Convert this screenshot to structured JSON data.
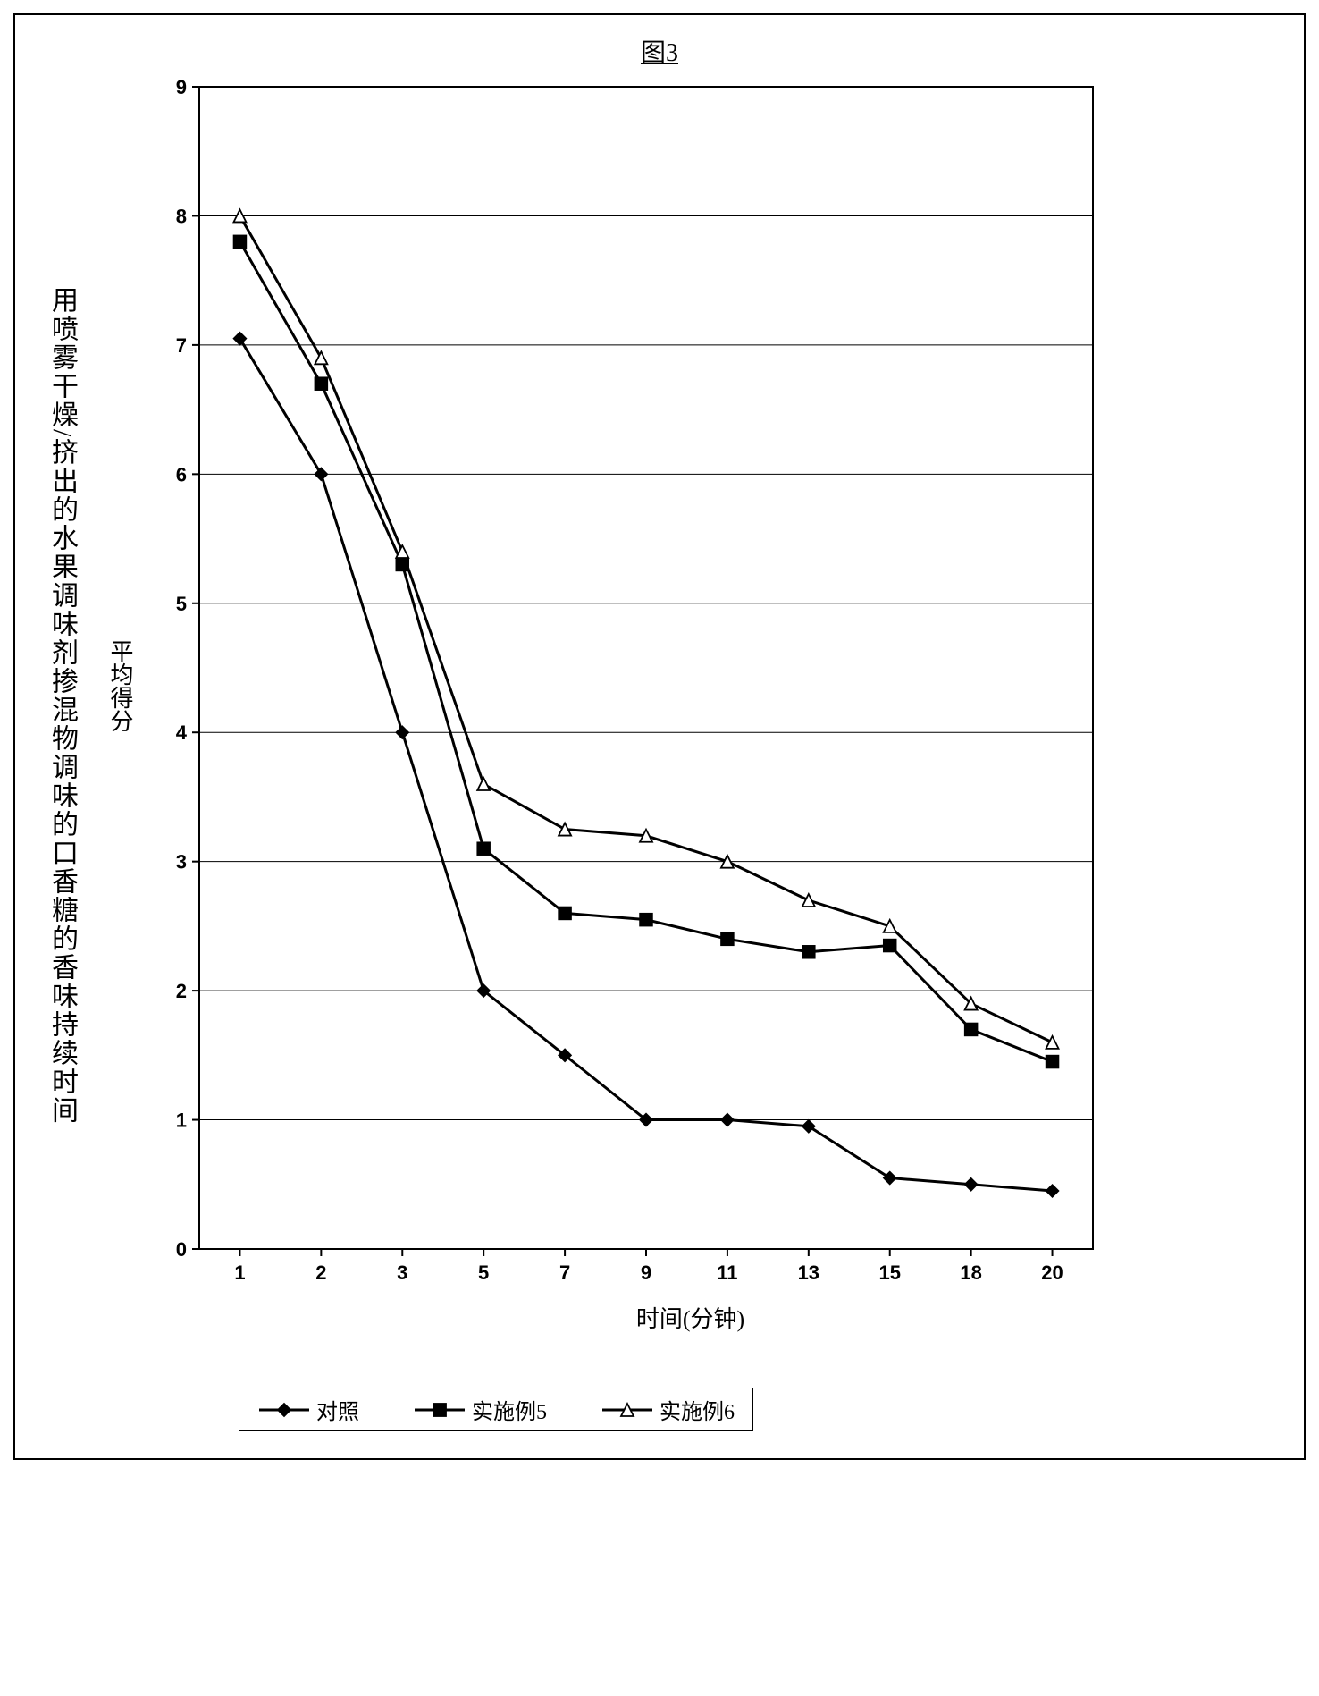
{
  "figure_label": "图3",
  "chart": {
    "type": "line",
    "title": "用喷雾干燥/挤出的水果调味剂掺混物调味的口香糖的香味持续时间",
    "title_fontsize": 30,
    "x_label": "时间(分钟)",
    "y_label": "平均得分",
    "label_fontsize": 26,
    "background_color": "#ffffff",
    "plot_border_color": "#000000",
    "grid_color": "#000000",
    "grid_line_width": 1,
    "ylim": [
      0,
      9
    ],
    "ytick_step": 1,
    "y_ticks": [
      0,
      1,
      2,
      3,
      4,
      5,
      6,
      7,
      8,
      9
    ],
    "x_categories": [
      1,
      2,
      3,
      5,
      7,
      9,
      11,
      13,
      15,
      18,
      20
    ],
    "tick_fontsize": 22,
    "tick_fontweight": "bold",
    "line_width": 3,
    "marker_size": 7,
    "series": [
      {
        "name": "对照",
        "marker": "diamond",
        "marker_fill": "#000000",
        "color": "#000000",
        "values": [
          7.05,
          6.0,
          4.0,
          2.0,
          1.5,
          1.0,
          1.0,
          0.95,
          0.55,
          0.5,
          0.45
        ]
      },
      {
        "name": "实施例5",
        "marker": "square",
        "marker_fill": "#000000",
        "color": "#000000",
        "values": [
          7.8,
          6.7,
          5.3,
          3.1,
          2.6,
          2.55,
          2.4,
          2.3,
          2.35,
          1.7,
          1.45
        ]
      },
      {
        "name": "实施例6",
        "marker": "triangle",
        "marker_fill": "#ffffff",
        "color": "#000000",
        "values": [
          8.0,
          6.9,
          5.4,
          3.6,
          3.25,
          3.2,
          3.0,
          2.7,
          2.5,
          1.9,
          1.6
        ]
      }
    ]
  },
  "legend": {
    "border_color": "#000000",
    "fontsize": 24,
    "items": [
      {
        "label": "对照",
        "marker": "diamond",
        "fill": "#000000"
      },
      {
        "label": "实施例5",
        "marker": "square",
        "fill": "#000000"
      },
      {
        "label": "实施例6",
        "marker": "triangle",
        "fill": "#ffffff"
      }
    ]
  }
}
